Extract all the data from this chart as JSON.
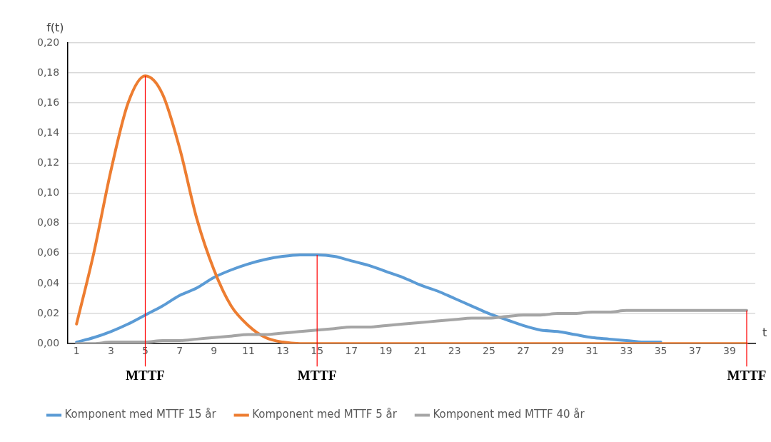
{
  "chart_data": {
    "type": "line",
    "xlabel": "t",
    "ylabel": "f(t)",
    "x": [
      1,
      2,
      3,
      4,
      5,
      6,
      7,
      8,
      9,
      10,
      11,
      12,
      13,
      14,
      15,
      16,
      17,
      18,
      19,
      20,
      21,
      22,
      23,
      24,
      25,
      26,
      27,
      28,
      29,
      30,
      31,
      32,
      33,
      34,
      35,
      36,
      37,
      38,
      39,
      40
    ],
    "xlim": [
      0.5,
      40.5
    ],
    "xticks": [
      1,
      3,
      5,
      7,
      9,
      11,
      13,
      15,
      17,
      19,
      21,
      23,
      25,
      27,
      29,
      31,
      33,
      35,
      37,
      39
    ],
    "ylim": [
      0,
      0.2
    ],
    "yticks": [
      {
        "value": 0,
        "label": "0,00"
      },
      {
        "value": 0.02,
        "label": "0,02"
      },
      {
        "value": 0.04,
        "label": "0,04"
      },
      {
        "value": 0.06,
        "label": "0,06"
      },
      {
        "value": 0.08,
        "label": "0,08"
      },
      {
        "value": 0.1,
        "label": "0,10"
      },
      {
        "value": 0.12,
        "label": "0,12"
      },
      {
        "value": 0.14,
        "label": "0,14"
      },
      {
        "value": 0.16,
        "label": "0,16"
      },
      {
        "value": 0.18,
        "label": "0,18"
      },
      {
        "value": 0.2,
        "label": "0,20"
      }
    ],
    "series": [
      {
        "name": "Komponent med MTTF 15 år",
        "color": "#5b9bd5",
        "values": [
          0.001,
          0.004,
          0.008,
          0.013,
          0.019,
          0.025,
          0.032,
          0.037,
          0.044,
          0.049,
          0.053,
          0.056,
          0.058,
          0.059,
          0.059,
          0.058,
          0.055,
          0.052,
          0.048,
          0.044,
          0.039,
          0.035,
          0.03,
          0.025,
          0.02,
          0.016,
          0.012,
          0.009,
          0.008,
          0.006,
          0.004,
          0.003,
          0.002,
          0.001,
          0.001,
          null,
          null,
          null,
          null,
          null
        ]
      },
      {
        "name": "Komponent med MTTF 5 år",
        "color": "#ed7d31",
        "values": [
          0.013,
          0.06,
          0.115,
          0.16,
          0.178,
          0.166,
          0.13,
          0.083,
          0.049,
          0.025,
          0.012,
          0.004,
          0.001,
          0,
          0,
          0,
          0,
          0,
          0,
          0,
          0,
          0,
          0,
          0,
          0,
          0,
          0,
          0,
          0,
          0,
          0,
          0,
          0,
          0,
          0,
          0,
          0,
          0,
          0,
          0
        ]
      },
      {
        "name": "Komponent med MTTF 40 år",
        "color": "#a5a5a5",
        "values": [
          0,
          0,
          0.001,
          0.001,
          0.001,
          0.002,
          0.002,
          0.003,
          0.004,
          0.005,
          0.006,
          0.006,
          0.007,
          0.008,
          0.009,
          0.01,
          0.011,
          0.011,
          0.012,
          0.013,
          0.014,
          0.015,
          0.016,
          0.017,
          0.017,
          0.018,
          0.019,
          0.019,
          0.02,
          0.02,
          0.021,
          0.021,
          0.022,
          0.022,
          0.022,
          0.022,
          0.022,
          0.022,
          0.022,
          0.022
        ]
      }
    ],
    "ref_lines": [
      {
        "axis": "x",
        "value": 5,
        "label": "MTTF",
        "color": "#ff0000"
      },
      {
        "axis": "x",
        "value": 15,
        "label": "MTTF",
        "color": "#ff0000"
      },
      {
        "axis": "x",
        "value": 40,
        "label": "MTTF",
        "color": "#ff0000"
      }
    ],
    "grid": "y",
    "legend": "bottom",
    "marker": "none",
    "line_style": "solid"
  }
}
